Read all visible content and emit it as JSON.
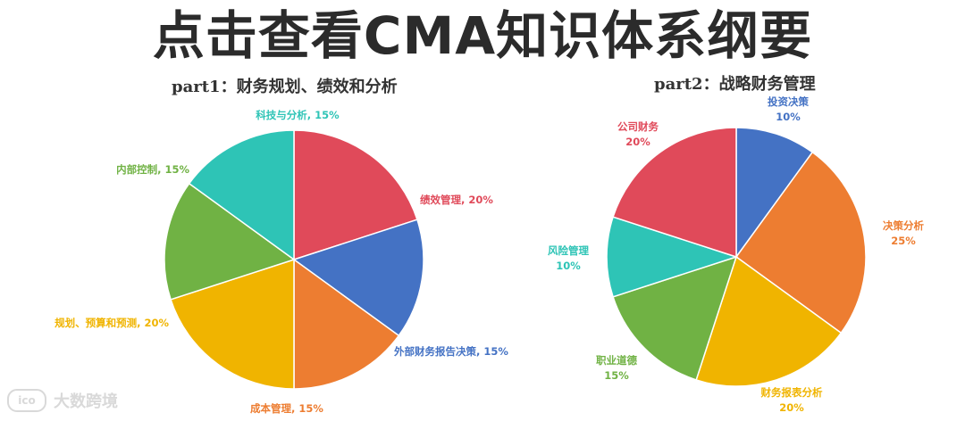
{
  "headline": "点击查看CMA知识体系纲要",
  "watermark": {
    "logo_text": "ico",
    "brand": "大数跨境"
  },
  "chart_data": [
    {
      "type": "pie",
      "title": "part1：财务规划、绩效和分析",
      "slices": [
        {
          "label": "绩效管理, 20%",
          "value": 20,
          "color": "#e04a5a"
        },
        {
          "label": "外部财务报告决策, 15%",
          "value": 15,
          "color": "#4472c4"
        },
        {
          "label": "成本管理, 15%",
          "value": 15,
          "color": "#ed7d31"
        },
        {
          "label": "规划、预算和预测, 20%",
          "value": 20,
          "color": "#f0b400"
        },
        {
          "label": "内部控制, 15%",
          "value": 15,
          "color": "#70b244"
        },
        {
          "label": "科技与分析, 15%",
          "value": 15,
          "color": "#2ec4b6"
        }
      ]
    },
    {
      "type": "pie",
      "title": "part2：战略财务管理",
      "slices": [
        {
          "label": "投资决策",
          "pct": "10%",
          "value": 10,
          "color": "#4472c4"
        },
        {
          "label": "决策分析",
          "pct": "25%",
          "value": 25,
          "color": "#ed7d31"
        },
        {
          "label": "财务报表分析",
          "pct": "20%",
          "value": 20,
          "color": "#f0b400"
        },
        {
          "label": "职业道德",
          "pct": "15%",
          "value": 15,
          "color": "#70b244"
        },
        {
          "label": "风险管理",
          "pct": "10%",
          "value": 10,
          "color": "#2ec4b6"
        },
        {
          "label": "公司财务",
          "pct": "20%",
          "value": 20,
          "color": "#e04a5a"
        }
      ]
    }
  ]
}
